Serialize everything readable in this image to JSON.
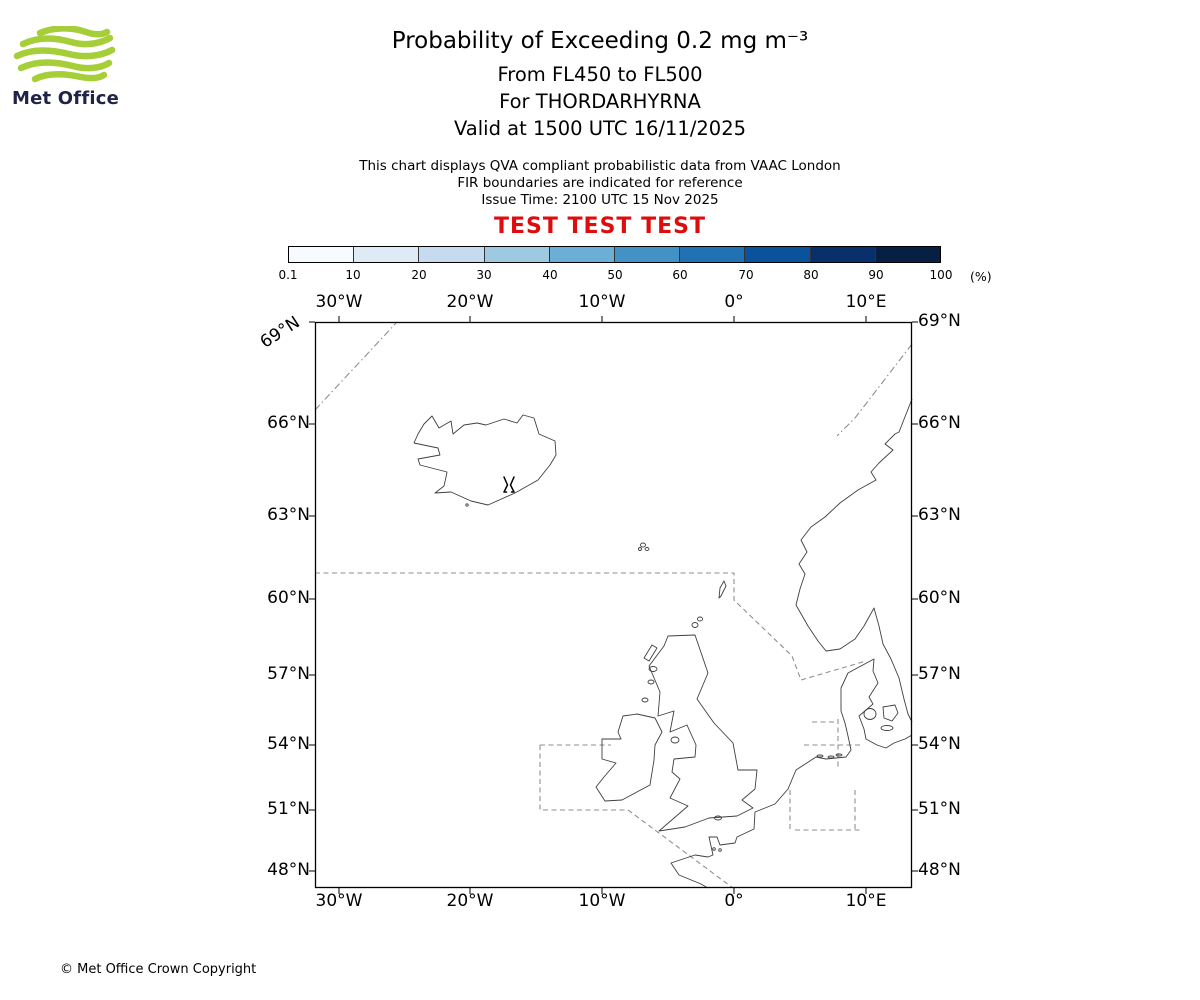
{
  "logo": {
    "text": "Met Office",
    "green": "#a6ce38"
  },
  "header": {
    "title": "Probability of Exceeding 0.2 mg m⁻³",
    "subtitle1": "From FL450 to FL500",
    "subtitle2": "For THORDARHYRNA",
    "subtitle3": "Valid at 1500 UTC 16/11/2025",
    "info1": "This chart displays QVA compliant probabilistic data from VAAC London",
    "info2": "FIR boundaries are indicated for reference",
    "info3": "Issue Time: 2100 UTC 15 Nov 2025",
    "test_banner": "TEST TEST TEST",
    "test_color": "#dd0d0d"
  },
  "colorbar": {
    "ticks": [
      "0.1",
      "10",
      "20",
      "30",
      "40",
      "50",
      "60",
      "70",
      "80",
      "90",
      "100"
    ],
    "unit": "(%)",
    "colors": [
      "#f7fbff",
      "#deebf7",
      "#c6dbef",
      "#9ecae1",
      "#6baed6",
      "#4292c6",
      "#2171b5",
      "#0a539c",
      "#08306b",
      "#061f42"
    ]
  },
  "map": {
    "lon_labels": [
      "30°W",
      "20°W",
      "10°W",
      "0°",
      "10°E"
    ],
    "lat_labels": [
      "69°N",
      "66°N",
      "63°N",
      "60°N",
      "57°N",
      "54°N",
      "51°N",
      "48°N"
    ]
  },
  "chart_data": {
    "type": "heatmap",
    "title": "Probability of Exceeding 0.2 mg m⁻³",
    "layer": "From FL450 to FL500",
    "volcano": "For THORDARHYRNA",
    "valid_time": "Valid at 1500 UTC 16/11/2025",
    "issue_time": "Issue Time: 2100 UTC 15 Nov 2025",
    "colorbar_ticks": [
      0.1,
      10,
      20,
      30,
      40,
      50,
      60,
      70,
      80,
      90,
      100
    ],
    "colorbar_unit": "(%)",
    "x_axis": {
      "label": "longitude",
      "ticks": [
        "30°W",
        "20°W",
        "10°W",
        "0°",
        "10°E"
      ],
      "range_deg": [
        -31.8,
        13.5
      ]
    },
    "y_axis": {
      "label": "latitude",
      "ticks": [
        "69°N",
        "66°N",
        "63°N",
        "60°N",
        "57°N",
        "54°N",
        "51°N",
        "48°N"
      ],
      "range_deg": [
        47.1,
        69.0
      ]
    },
    "values": [],
    "legend_position": "top"
  },
  "footer": {
    "copyright": "© Met Office Crown Copyright"
  }
}
